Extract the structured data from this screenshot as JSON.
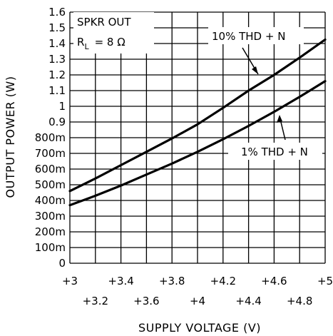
{
  "chart_data": {
    "type": "line",
    "xlabel": "SUPPLY VOLTAGE (V)",
    "ylabel": "OUTPUT POWER (W)",
    "xlim": [
      3,
      5
    ],
    "ylim": [
      0,
      1.6
    ],
    "x_ticks": [
      3,
      3.2,
      3.4,
      3.6,
      3.8,
      4,
      4.2,
      4.4,
      4.6,
      4.8,
      5
    ],
    "x_tick_labels": [
      "+3",
      "+3.2",
      "+3.4",
      "+3.6",
      "+3.8",
      "+4",
      "+4.2",
      "+4.4",
      "+4.6",
      "+4.8",
      "+5"
    ],
    "y_ticks": [
      0,
      0.1,
      0.2,
      0.3,
      0.4,
      0.5,
      0.6,
      0.7,
      0.8,
      0.9,
      1,
      1.1,
      1.2,
      1.3,
      1.4,
      1.5,
      1.6
    ],
    "y_tick_labels": [
      "0",
      "100m",
      "200m",
      "300m",
      "400m",
      "500m",
      "600m",
      "700m",
      "800m",
      "0.9",
      "1",
      "1.1",
      "1.2",
      "1.3",
      "1.4",
      "1.5",
      "1.6"
    ],
    "grid": true,
    "series": [
      {
        "name": "10% THD + N",
        "x": [
          3,
          3.2,
          3.4,
          3.6,
          3.8,
          4,
          4.2,
          4.4,
          4.6,
          4.8,
          5
        ],
        "y": [
          0.46,
          0.54,
          0.625,
          0.71,
          0.795,
          0.885,
          0.99,
          1.1,
          1.2,
          1.31,
          1.425
        ]
      },
      {
        "name": "1% THD + N",
        "x": [
          3,
          3.2,
          3.4,
          3.6,
          3.8,
          4,
          4.2,
          4.4,
          4.6,
          4.8,
          5
        ],
        "y": [
          0.37,
          0.43,
          0.495,
          0.565,
          0.635,
          0.71,
          0.79,
          0.875,
          0.965,
          1.06,
          1.16
        ]
      }
    ],
    "annotations": {
      "condition_line1": "SPKR OUT",
      "condition_r": "R",
      "condition_r_sub": "L",
      "condition_r_value": "= 8 Ω"
    }
  }
}
